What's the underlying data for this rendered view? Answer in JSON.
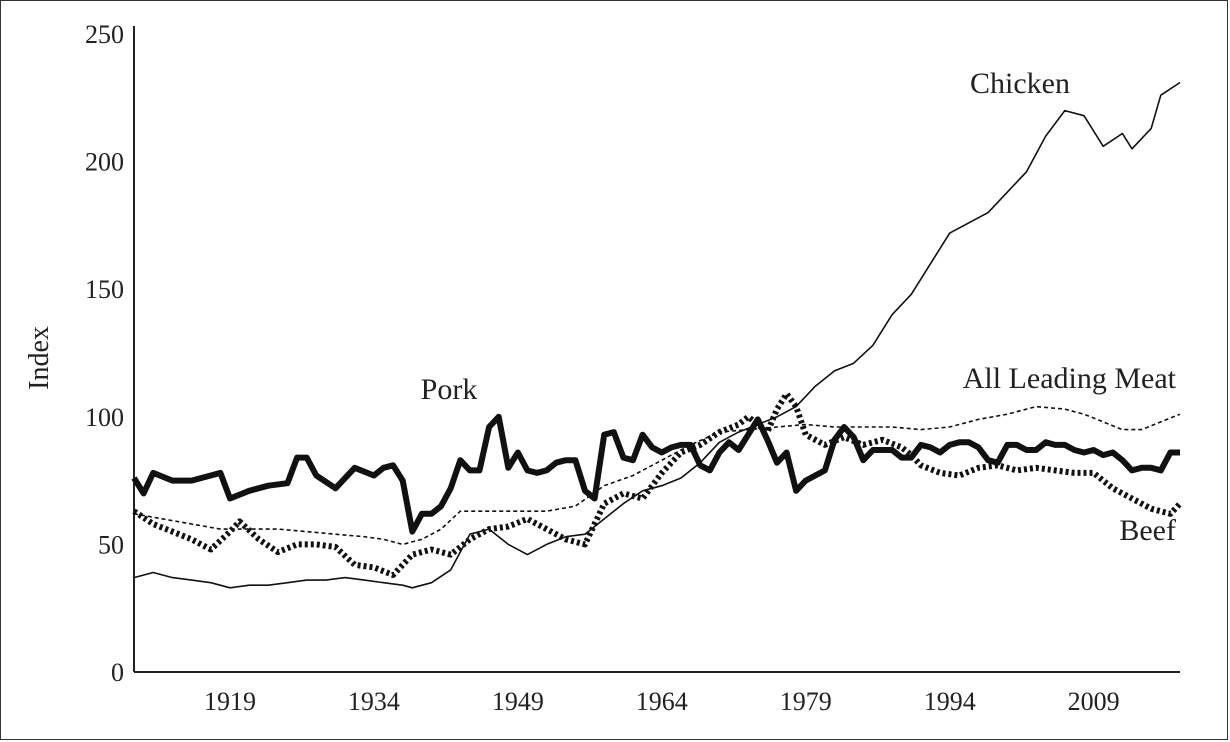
{
  "chart_data": {
    "type": "line",
    "title": "",
    "xlabel": "",
    "ylabel": "Index",
    "xlim": [
      1909,
      2018
    ],
    "ylim": [
      0,
      250
    ],
    "xticks": [
      1919,
      1934,
      1949,
      1964,
      1979,
      1994,
      2009
    ],
    "yticks": [
      0,
      50,
      100,
      150,
      200,
      250
    ],
    "grid": false,
    "series": [
      {
        "name": "Chicken",
        "label": "Chicken",
        "style": "thin-solid",
        "points": [
          [
            1909,
            37
          ],
          [
            1911,
            39
          ],
          [
            1913,
            37
          ],
          [
            1915,
            36
          ],
          [
            1917,
            35
          ],
          [
            1919,
            33
          ],
          [
            1921,
            34
          ],
          [
            1923,
            34
          ],
          [
            1925,
            35
          ],
          [
            1927,
            36
          ],
          [
            1929,
            36
          ],
          [
            1931,
            37
          ],
          [
            1933,
            36
          ],
          [
            1935,
            35
          ],
          [
            1937,
            34
          ],
          [
            1938,
            33
          ],
          [
            1940,
            35
          ],
          [
            1942,
            40
          ],
          [
            1944,
            54
          ],
          [
            1946,
            56
          ],
          [
            1948,
            50
          ],
          [
            1950,
            46
          ],
          [
            1952,
            50
          ],
          [
            1954,
            53
          ],
          [
            1956,
            54
          ],
          [
            1958,
            60
          ],
          [
            1960,
            66
          ],
          [
            1962,
            71
          ],
          [
            1964,
            73
          ],
          [
            1966,
            76
          ],
          [
            1968,
            82
          ],
          [
            1970,
            90
          ],
          [
            1972,
            94
          ],
          [
            1974,
            97
          ],
          [
            1976,
            100
          ],
          [
            1978,
            104
          ],
          [
            1980,
            112
          ],
          [
            1982,
            118
          ],
          [
            1984,
            121
          ],
          [
            1986,
            128
          ],
          [
            1988,
            140
          ],
          [
            1990,
            148
          ],
          [
            1992,
            160
          ],
          [
            1994,
            172
          ],
          [
            1996,
            176
          ],
          [
            1998,
            180
          ],
          [
            2000,
            188
          ],
          [
            2002,
            196
          ],
          [
            2004,
            210
          ],
          [
            2006,
            220
          ],
          [
            2008,
            218
          ],
          [
            2010,
            206
          ],
          [
            2012,
            211
          ],
          [
            2013,
            205
          ],
          [
            2015,
            213
          ],
          [
            2016,
            226
          ],
          [
            2018,
            231
          ]
        ]
      },
      {
        "name": "All Leading Meat",
        "label": "All Leading Meat",
        "style": "thin-dotted",
        "points": [
          [
            1909,
            62
          ],
          [
            1912,
            60
          ],
          [
            1915,
            58
          ],
          [
            1918,
            56
          ],
          [
            1921,
            56
          ],
          [
            1924,
            56
          ],
          [
            1927,
            55
          ],
          [
            1930,
            54
          ],
          [
            1933,
            53
          ],
          [
            1935,
            52
          ],
          [
            1937,
            50
          ],
          [
            1939,
            52
          ],
          [
            1941,
            56
          ],
          [
            1943,
            63
          ],
          [
            1945,
            63
          ],
          [
            1947,
            63
          ],
          [
            1949,
            63
          ],
          [
            1952,
            63
          ],
          [
            1955,
            65
          ],
          [
            1958,
            73
          ],
          [
            1961,
            77
          ],
          [
            1964,
            83
          ],
          [
            1967,
            89
          ],
          [
            1970,
            94
          ],
          [
            1973,
            95
          ],
          [
            1976,
            96
          ],
          [
            1979,
            97
          ],
          [
            1982,
            96
          ],
          [
            1985,
            96
          ],
          [
            1988,
            96
          ],
          [
            1991,
            95
          ],
          [
            1994,
            96
          ],
          [
            1997,
            99
          ],
          [
            2000,
            101
          ],
          [
            2003,
            104
          ],
          [
            2006,
            103
          ],
          [
            2008,
            101
          ],
          [
            2010,
            98
          ],
          [
            2012,
            95
          ],
          [
            2014,
            95
          ],
          [
            2016,
            98
          ],
          [
            2018,
            101
          ]
        ]
      },
      {
        "name": "Pork",
        "label": "Pork",
        "style": "thick-solid",
        "points": [
          [
            1909,
            76
          ],
          [
            1910,
            70
          ],
          [
            1911,
            78
          ],
          [
            1913,
            75
          ],
          [
            1915,
            75
          ],
          [
            1917,
            77
          ],
          [
            1918,
            78
          ],
          [
            1919,
            68
          ],
          [
            1921,
            71
          ],
          [
            1923,
            73
          ],
          [
            1925,
            74
          ],
          [
            1926,
            84
          ],
          [
            1927,
            84
          ],
          [
            1928,
            77
          ],
          [
            1930,
            72
          ],
          [
            1932,
            80
          ],
          [
            1934,
            77
          ],
          [
            1935,
            80
          ],
          [
            1936,
            81
          ],
          [
            1937,
            75
          ],
          [
            1938,
            55
          ],
          [
            1939,
            62
          ],
          [
            1940,
            62
          ],
          [
            1941,
            65
          ],
          [
            1942,
            72
          ],
          [
            1943,
            83
          ],
          [
            1944,
            79
          ],
          [
            1945,
            79
          ],
          [
            1946,
            96
          ],
          [
            1947,
            100
          ],
          [
            1948,
            80
          ],
          [
            1949,
            86
          ],
          [
            1950,
            79
          ],
          [
            1951,
            78
          ],
          [
            1952,
            79
          ],
          [
            1953,
            82
          ],
          [
            1954,
            83
          ],
          [
            1955,
            83
          ],
          [
            1956,
            71
          ],
          [
            1957,
            68
          ],
          [
            1958,
            93
          ],
          [
            1959,
            94
          ],
          [
            1960,
            84
          ],
          [
            1961,
            83
          ],
          [
            1962,
            93
          ],
          [
            1963,
            88
          ],
          [
            1964,
            86
          ],
          [
            1965,
            88
          ],
          [
            1966,
            89
          ],
          [
            1967,
            89
          ],
          [
            1968,
            81
          ],
          [
            1969,
            79
          ],
          [
            1970,
            86
          ],
          [
            1971,
            90
          ],
          [
            1972,
            87
          ],
          [
            1973,
            93
          ],
          [
            1974,
            99
          ],
          [
            1975,
            91
          ],
          [
            1976,
            82
          ],
          [
            1977,
            86
          ],
          [
            1978,
            71
          ],
          [
            1979,
            75
          ],
          [
            1980,
            77
          ],
          [
            1981,
            79
          ],
          [
            1982,
            91
          ],
          [
            1983,
            96
          ],
          [
            1984,
            92
          ],
          [
            1985,
            83
          ],
          [
            1986,
            87
          ],
          [
            1987,
            87
          ],
          [
            1988,
            87
          ],
          [
            1989,
            84
          ],
          [
            1990,
            84
          ],
          [
            1991,
            89
          ],
          [
            1992,
            88
          ],
          [
            1993,
            86
          ],
          [
            1994,
            89
          ],
          [
            1995,
            90
          ],
          [
            1996,
            90
          ],
          [
            1997,
            88
          ],
          [
            1998,
            83
          ],
          [
            1999,
            82
          ],
          [
            2000,
            89
          ],
          [
            2001,
            89
          ],
          [
            2002,
            87
          ],
          [
            2003,
            87
          ],
          [
            2004,
            90
          ],
          [
            2005,
            89
          ],
          [
            2006,
            89
          ],
          [
            2007,
            87
          ],
          [
            2008,
            86
          ],
          [
            2009,
            87
          ],
          [
            2010,
            85
          ],
          [
            2011,
            86
          ],
          [
            2012,
            83
          ],
          [
            2013,
            79
          ],
          [
            2014,
            80
          ],
          [
            2015,
            80
          ],
          [
            2016,
            79
          ],
          [
            2017,
            86
          ],
          [
            2018,
            86
          ]
        ]
      },
      {
        "name": "Beef",
        "label": "Beef",
        "style": "thick-dotted",
        "points": [
          [
            1909,
            63
          ],
          [
            1911,
            58
          ],
          [
            1913,
            55
          ],
          [
            1915,
            52
          ],
          [
            1917,
            48
          ],
          [
            1919,
            55
          ],
          [
            1920,
            59
          ],
          [
            1922,
            52
          ],
          [
            1924,
            47
          ],
          [
            1926,
            50
          ],
          [
            1928,
            50
          ],
          [
            1930,
            49
          ],
          [
            1932,
            42
          ],
          [
            1934,
            41
          ],
          [
            1936,
            38
          ],
          [
            1938,
            46
          ],
          [
            1940,
            48
          ],
          [
            1942,
            46
          ],
          [
            1944,
            52
          ],
          [
            1946,
            56
          ],
          [
            1948,
            57
          ],
          [
            1950,
            60
          ],
          [
            1952,
            56
          ],
          [
            1954,
            52
          ],
          [
            1956,
            50
          ],
          [
            1958,
            66
          ],
          [
            1960,
            70
          ],
          [
            1962,
            68
          ],
          [
            1964,
            78
          ],
          [
            1966,
            86
          ],
          [
            1968,
            89
          ],
          [
            1970,
            94
          ],
          [
            1972,
            97
          ],
          [
            1973,
            100
          ],
          [
            1975,
            94
          ],
          [
            1976,
            103
          ],
          [
            1977,
            109
          ],
          [
            1978,
            104
          ],
          [
            1979,
            93
          ],
          [
            1981,
            89
          ],
          [
            1983,
            92
          ],
          [
            1985,
            89
          ],
          [
            1987,
            91
          ],
          [
            1989,
            88
          ],
          [
            1990,
            85
          ],
          [
            1991,
            81
          ],
          [
            1993,
            78
          ],
          [
            1995,
            77
          ],
          [
            1997,
            80
          ],
          [
            1999,
            81
          ],
          [
            2001,
            79
          ],
          [
            2003,
            80
          ],
          [
            2005,
            79
          ],
          [
            2007,
            78
          ],
          [
            2009,
            78
          ],
          [
            2011,
            72
          ],
          [
            2013,
            68
          ],
          [
            2015,
            64
          ],
          [
            2017,
            62
          ],
          [
            2018,
            66
          ]
        ]
      }
    ],
    "annotations": [
      "Chicken",
      "All Leading Meat",
      "Pork",
      "Beef"
    ]
  }
}
